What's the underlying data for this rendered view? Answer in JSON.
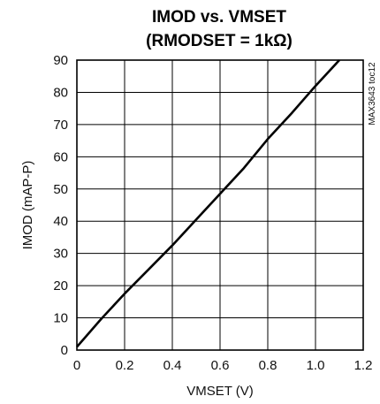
{
  "chart_data": {
    "type": "line",
    "title": "IMOD vs. VMSET",
    "subtitle": "(RMODSET = 1kΩ)",
    "xlabel": "VMSET (V)",
    "ylabel": "IMOD (mAP-P)",
    "side_note": "MAX3643 toc12",
    "xlim": [
      0,
      1.2
    ],
    "ylim": [
      0,
      90
    ],
    "xticks": [
      "0",
      "0.2",
      "0.4",
      "0.6",
      "0.8",
      "1.0",
      "1.2"
    ],
    "yticks": [
      "0",
      "10",
      "20",
      "30",
      "40",
      "50",
      "60",
      "70",
      "80",
      "90"
    ],
    "grid": true,
    "series": [
      {
        "color": "#000000",
        "x": [
          0,
          0.1,
          0.2,
          0.3,
          0.4,
          0.5,
          0.6,
          0.7,
          0.8,
          0.9,
          1.0,
          1.1
        ],
        "y": [
          1,
          9.5,
          17.5,
          25,
          32.5,
          40.5,
          48.5,
          56.5,
          65.5,
          73.5,
          82,
          90
        ]
      }
    ]
  }
}
